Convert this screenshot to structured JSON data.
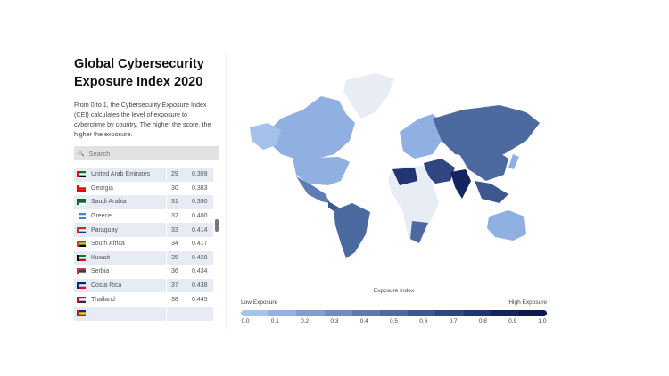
{
  "title": "Global Cybersecurity Exposure Index 2020",
  "description": "From 0 to 1, the Cybersecurity Exposure Index (CEI) calculates the level of exposure to cybercrime by country. The higher the score, the higher the exposure.",
  "search": {
    "placeholder": "Search"
  },
  "rows": [
    {
      "country": "United Arab Emirates",
      "rank": "29",
      "score": "0.359",
      "flag": [
        "#00732f",
        "#fff",
        "#000",
        "#ff0000"
      ]
    },
    {
      "country": "Georgia",
      "rank": "30",
      "score": "0.383",
      "flag": [
        "#fff",
        "#e00",
        "#e00",
        "#e00"
      ]
    },
    {
      "country": "Saudi Arabia",
      "rank": "31",
      "score": "0.390",
      "flag": [
        "#006c35",
        "#006c35",
        "#fff",
        "#006c35"
      ]
    },
    {
      "country": "Greece",
      "rank": "32",
      "score": "0.400",
      "flag": [
        "#4d7fd0",
        "#fff",
        "#4d7fd0",
        "#fff"
      ]
    },
    {
      "country": "Paraguay",
      "rank": "33",
      "score": "0.414",
      "flag": [
        "#d52b1e",
        "#fff",
        "#0038a8",
        "#d52b1e"
      ]
    },
    {
      "country": "South Africa",
      "rank": "34",
      "score": "0.417",
      "flag": [
        "#007a4d",
        "#ffb612",
        "#000",
        "#de3831"
      ]
    },
    {
      "country": "Kuwait",
      "rank": "35",
      "score": "0.428",
      "flag": [
        "#007a3d",
        "#fff",
        "#ce1126",
        "#000"
      ]
    },
    {
      "country": "Serbia",
      "rank": "36",
      "score": "0.434",
      "flag": [
        "#c6363c",
        "#0c4076",
        "#fff",
        "#c6363c"
      ]
    },
    {
      "country": "Costa Rica",
      "rank": "37",
      "score": "0.438",
      "flag": [
        "#002b7f",
        "#fff",
        "#ce1126",
        "#002b7f"
      ]
    },
    {
      "country": "Thailand",
      "rank": "38",
      "score": "0.445",
      "flag": [
        "#a51931",
        "#fff",
        "#2d2a4a",
        "#a51931"
      ]
    },
    {
      "country": "",
      "rank": "",
      "score": "",
      "flag": [
        "#002b7f",
        "#fcd116",
        "#ce1126",
        "#ce1126"
      ]
    }
  ],
  "legend": {
    "title": "Exposure Index",
    "low": "Low Exposure",
    "high": "High Exposure",
    "ticks": [
      "0.0",
      "0.1",
      "0.2",
      "0.3",
      "0.4",
      "0.5",
      "0.6",
      "0.7",
      "0.8",
      "0.9",
      "1.0"
    ],
    "colors": [
      "#a7c5ec",
      "#92b2e0",
      "#7f9fd2",
      "#6d8cc1",
      "#5c7bb1",
      "#4c6aa0",
      "#3d5890",
      "#2f4680",
      "#213570",
      "#152560",
      "#0b1a4e"
    ]
  }
}
